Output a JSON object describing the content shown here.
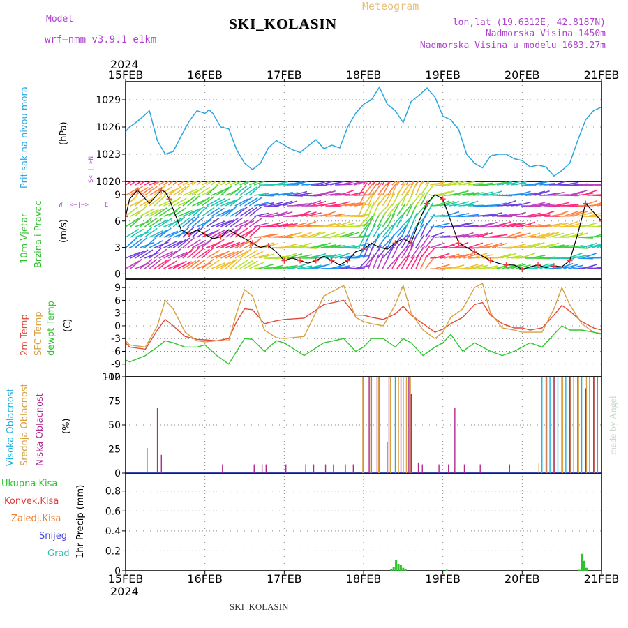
{
  "header": {
    "model_label": "Model",
    "model_name": "wrf–nmm_v3.9.1 e1km",
    "station": "SKI_KOLASIN",
    "product": "Meteogram",
    "lonlat": "lon,lat (19.6312E, 42.8187N)",
    "elevation": "Nadmorska Visina 1450m",
    "model_elevation": "Nadmorska Visina u modelu 1683.27m",
    "year": "2024"
  },
  "footer": {
    "station": "SKI_KOLASIN",
    "year": "2024",
    "credit": "made by Angel"
  },
  "colors": {
    "pressure": "#2aa6e0",
    "temp2m": "#e04a3a",
    "sfc": "#d8a040",
    "dewpt": "#30c830",
    "high_cloud": "#20b0e0",
    "mid_cloud": "#d8a040",
    "low_cloud": "#b02890",
    "total_precip": "#30c030",
    "conv": "#e04040",
    "frz": "#f08030",
    "snow": "#4848e0",
    "hail": "#30c0b0"
  },
  "chart_data": [
    {
      "type": "line",
      "title": "",
      "ylabel": [
        "Pritisak na nivou mora",
        "(hPa)"
      ],
      "x_ticks": [
        "15FEB",
        "16FEB",
        "17FEB",
        "18FEB",
        "19FEB",
        "20FEB",
        "21FEB"
      ],
      "ylim": [
        1020,
        1031
      ],
      "yticks": [
        "1020",
        "1023",
        "1026",
        "1029"
      ],
      "grid": true,
      "series": [
        {
          "name": "",
          "x": [
            0,
            0.05,
            0.1,
            0.2,
            0.3,
            0.4,
            0.5,
            0.6,
            0.7,
            0.8,
            0.9,
            1.0,
            1.05,
            1.1,
            1.2,
            1.3,
            1.4,
            1.5,
            1.6,
            1.7,
            1.8,
            1.9,
            2.0,
            2.1,
            2.2,
            2.3,
            2.4,
            2.5,
            2.6,
            2.7,
            2.8,
            2.9,
            3.0,
            3.1,
            3.2,
            3.3,
            3.4,
            3.5,
            3.6,
            3.7,
            3.8,
            3.9,
            4.0,
            4.1,
            4.2,
            4.3,
            4.4,
            4.5,
            4.6,
            4.7,
            4.8,
            4.9,
            5.0,
            5.1,
            5.2,
            5.3,
            5.4,
            5.5,
            5.6,
            5.7,
            5.8,
            5.9,
            6.0
          ],
          "values": [
            1025.5,
            1026,
            1026.3,
            1027,
            1027.8,
            1024.5,
            1023,
            1023.3,
            1025,
            1026.6,
            1027.8,
            1027.5,
            1027.9,
            1027.5,
            1026,
            1025.8,
            1023.5,
            1022,
            1021.3,
            1022,
            1023.7,
            1024.5,
            1024,
            1023.5,
            1023.2,
            1023.9,
            1024.6,
            1023.6,
            1024,
            1023.7,
            1026,
            1027.5,
            1028.5,
            1029,
            1030.4,
            1028.5,
            1027.8,
            1026.5,
            1028.8,
            1029.5,
            1030.3,
            1029.3,
            1027.2,
            1026.8,
            1025.7,
            1023,
            1022,
            1021.5,
            1022.8,
            1023,
            1023,
            1022.5,
            1022.3,
            1021.6,
            1021.8,
            1021.6,
            1020.6,
            1021.2,
            1022,
            1024.5,
            1026.8,
            1027.8,
            1028.2
          ]
        }
      ]
    },
    {
      "type": "line",
      "title": "",
      "ylabel": [
        "10m Vjetar",
        "Brzina i Pravac",
        "(m/s)"
      ],
      "compass": {
        "n": "N",
        "s": "S",
        "w": "W",
        "e": "E",
        "arrows": "<–|–>"
      },
      "ylim": [
        -0.6,
        10.5
      ],
      "yticks": [
        "0",
        "3",
        "6",
        "9"
      ],
      "grid": true,
      "series": [
        {
          "name": "",
          "x": [
            0,
            0.05,
            0.15,
            0.3,
            0.45,
            0.5,
            0.55,
            0.7,
            0.8,
            0.9,
            1.0,
            1.1,
            1.2,
            1.3,
            1.4,
            1.5,
            1.6,
            1.7,
            1.8,
            1.9,
            2.0,
            2.1,
            2.2,
            2.3,
            2.4,
            2.5,
            2.6,
            2.7,
            2.8,
            2.9,
            3.0,
            3.1,
            3.2,
            3.3,
            3.4,
            3.5,
            3.6,
            3.7,
            3.8,
            3.9,
            4.0,
            4.1,
            4.2,
            4.3,
            4.4,
            4.5,
            4.6,
            4.7,
            4.8,
            4.9,
            5.0,
            5.1,
            5.2,
            5.3,
            5.4,
            5.5,
            5.6,
            5.7,
            5.8,
            5.9,
            6.0
          ],
          "values": [
            6.5,
            8.5,
            9.5,
            8.0,
            9.5,
            9.3,
            8.5,
            5.0,
            4.5,
            5.0,
            4.5,
            4.0,
            4.2,
            5.0,
            4.5,
            4.0,
            3.5,
            3.0,
            3.2,
            2.5,
            1.5,
            1.8,
            1.5,
            1.2,
            1.5,
            2.0,
            1.5,
            1.0,
            1.5,
            2.5,
            2.8,
            3.5,
            3.0,
            2.8,
            3.5,
            4.0,
            3.5,
            6.0,
            8.0,
            9.0,
            8.5,
            6.0,
            3.5,
            3.0,
            2.5,
            2.0,
            1.5,
            1.2,
            1.0,
            1.0,
            0.5,
            0.8,
            1.0,
            0.7,
            0.9,
            0.8,
            1.5,
            4.5,
            8.0,
            7.0,
            6.0
          ]
        }
      ]
    },
    {
      "type": "line",
      "title": "",
      "ylabel": [
        "2m Temp",
        "SFC Temp",
        "dewpt Temp",
        "(C)"
      ],
      "ylim": [
        -12,
        11
      ],
      "yticks": [
        "-12",
        "-9",
        "-6",
        "-3",
        "0",
        "3",
        "6",
        "9"
      ],
      "grid": true,
      "x": [
        0,
        0.05,
        0.25,
        0.4,
        0.5,
        0.6,
        0.75,
        0.9,
        1.0,
        1.15,
        1.3,
        1.4,
        1.5,
        1.6,
        1.75,
        1.9,
        2.0,
        2.25,
        2.5,
        2.75,
        2.9,
        3.0,
        3.1,
        3.25,
        3.4,
        3.5,
        3.6,
        3.75,
        3.9,
        4.0,
        4.1,
        4.25,
        4.4,
        4.5,
        4.6,
        4.75,
        4.9,
        5.0,
        5.1,
        5.25,
        5.4,
        5.5,
        5.6,
        5.75,
        5.9,
        6.0
      ],
      "series": [
        {
          "name": "2m Temp",
          "values": [
            -4,
            -5,
            -5.5,
            -1,
            1.5,
            0,
            -2.5,
            -3.2,
            -3.3,
            -3.5,
            -3,
            1,
            4,
            3.8,
            0.5,
            1.2,
            1.5,
            1.8,
            5,
            6,
            2.5,
            2.5,
            2,
            1.5,
            2.8,
            4.6,
            2.5,
            0.5,
            -1.5,
            -0.8,
            0.5,
            2,
            5,
            5.5,
            2.5,
            0.5,
            -0.5,
            -0.5,
            -1,
            -0.5,
            2.5,
            4.8,
            3.5,
            1,
            -0.5,
            -1
          ]
        },
        {
          "name": "SFC Temp",
          "values": [
            -3.5,
            -4.5,
            -5,
            0,
            6,
            4,
            -1.5,
            -3.5,
            -3.8,
            -3.5,
            -3.5,
            3,
            8.5,
            7,
            -1,
            -2.8,
            -3,
            -2.5,
            7,
            9.5,
            2,
            1,
            0.5,
            0,
            5,
            9.5,
            3,
            -1,
            -3,
            -1.5,
            2,
            4,
            9,
            10,
            3,
            -0.5,
            -1,
            -1.5,
            -1.5,
            -1.5,
            4,
            9,
            5,
            0.5,
            -1.5,
            -1.8
          ]
        },
        {
          "name": "dewpt Temp",
          "values": [
            -8,
            -8.5,
            -7,
            -5,
            -3.5,
            -4,
            -5,
            -5,
            -4.5,
            -7,
            -9,
            -6,
            -3,
            -3.2,
            -6,
            -3.5,
            -4,
            -7,
            -4,
            -3,
            -6,
            -5,
            -3,
            -3,
            -5,
            -3,
            -4,
            -7,
            -5,
            -4,
            -2,
            -6,
            -4,
            -5,
            -6,
            -7,
            -6,
            -5,
            -4,
            -5,
            -2,
            0,
            -1,
            -1,
            -1.5,
            -2
          ]
        }
      ]
    },
    {
      "type": "bar",
      "title": "",
      "ylabel": [
        "Visoka Oblacnost",
        "Srednja Oblacnost",
        "Niska Oblacnost",
        "(%)"
      ],
      "ylim": [
        0,
        100
      ],
      "yticks": [
        "0",
        "25",
        "50",
        "75",
        "100"
      ],
      "grid": true,
      "series": [
        {
          "name": "Visoka Oblacnost",
          "x": [
            3.0,
            3.1,
            3.2,
            3.3,
            3.4,
            3.5,
            5.25,
            5.35,
            5.45,
            5.55,
            5.65,
            5.75,
            5.85,
            5.95
          ],
          "values": [
            100,
            100,
            100,
            32,
            100,
            100,
            100,
            100,
            100,
            100,
            100,
            100,
            100,
            100
          ]
        },
        {
          "name": "Srednja Oblacnost",
          "x": [
            2.98,
            3.08,
            3.18,
            3.33,
            3.43,
            3.53,
            3.58,
            5.2,
            5.3,
            5.4,
            5.5,
            5.6,
            5.7,
            5.8,
            5.9
          ],
          "values": [
            100,
            100,
            100,
            100,
            100,
            100,
            100,
            10,
            100,
            100,
            100,
            100,
            100,
            100,
            100
          ]
        },
        {
          "name": "Niska Oblacnost",
          "x": [
            0.25,
            0.38,
            0.43,
            1.2,
            1.6,
            1.7,
            1.75,
            2.0,
            2.25,
            2.35,
            2.5,
            2.6,
            2.75,
            2.85,
            3.05,
            3.15,
            3.3,
            3.45,
            3.55,
            3.58,
            3.67,
            3.72,
            3.93,
            4.05,
            4.13,
            4.25,
            4.45,
            4.82,
            5.28,
            5.38,
            5.48,
            5.58,
            5.68,
            5.78,
            5.88
          ],
          "values": [
            26,
            68,
            19,
            9,
            9,
            9,
            9,
            9,
            9,
            9,
            9,
            9,
            9,
            9,
            100,
            100,
            100,
            100,
            100,
            82,
            11,
            9,
            9,
            9,
            68,
            9,
            9,
            9,
            100,
            100,
            100,
            100,
            100,
            88,
            100
          ]
        }
      ]
    },
    {
      "type": "bar",
      "title": "",
      "ylabel": [
        "1hr Precip (mm)"
      ],
      "legend": [
        "Ukupna Kisa",
        "Konvek.Kisa",
        "Zaledj.Kisa",
        "Snijeg",
        "Grad"
      ],
      "ylim": [
        0,
        0.98
      ],
      "yticks": [
        "0",
        "0.2",
        "0.4",
        "0.6",
        "0.8"
      ],
      "grid": true,
      "series": [
        {
          "name": "Ukupna Kisa",
          "x": [
            3.35,
            3.38,
            3.41,
            3.44,
            3.47,
            3.5,
            3.53,
            4.05,
            5.72,
            5.75,
            5.78,
            5.81
          ],
          "values": [
            0.02,
            0.04,
            0.11,
            0.07,
            0.06,
            0.03,
            0.02,
            0.01,
            0.01,
            0.17,
            0.1,
            0.03
          ]
        }
      ]
    }
  ]
}
